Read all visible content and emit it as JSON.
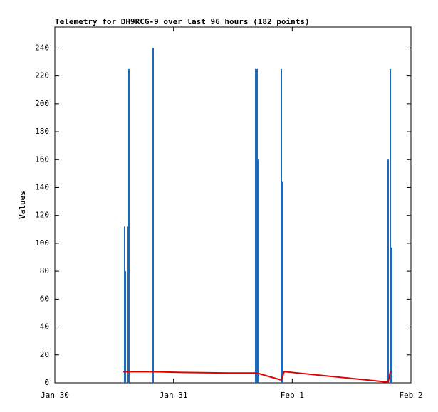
{
  "chart_data": {
    "type": "impulse-line",
    "title": "Telemetry for DH9RCG-9 over last 96 hours (182 points)",
    "y_label": "Values",
    "xlim": [
      0,
      3
    ],
    "xticks": [
      {
        "value": 0,
        "label": "Jan 30"
      },
      {
        "value": 1,
        "label": "Jan 31"
      },
      {
        "value": 2,
        "label": "Feb 1"
      },
      {
        "value": 3,
        "label": "Feb 2"
      }
    ],
    "ylim": [
      0,
      255
    ],
    "yticks": [
      0,
      20,
      40,
      60,
      80,
      100,
      120,
      140,
      160,
      180,
      200,
      220,
      240
    ],
    "series": [
      {
        "style": "impulses",
        "color": "#1f68b8",
        "x": [
          0.588,
          0.594,
          0.618,
          0.624,
          0.828,
          1.692,
          1.704,
          1.71,
          1.908,
          1.92,
          2.808,
          2.826,
          2.838
        ],
        "values": [
          112,
          80,
          112,
          225,
          240,
          225,
          225,
          160,
          225,
          144,
          160,
          225,
          97
        ]
      },
      {
        "style": "line",
        "color": "#e00000",
        "x": [
          0.576,
          0.828,
          1.038,
          1.47,
          1.704,
          1.908,
          1.932,
          2.808,
          2.826,
          2.838
        ],
        "values": [
          8,
          8,
          7.5,
          7,
          7,
          2,
          8,
          0.5,
          8,
          8
        ]
      }
    ]
  }
}
